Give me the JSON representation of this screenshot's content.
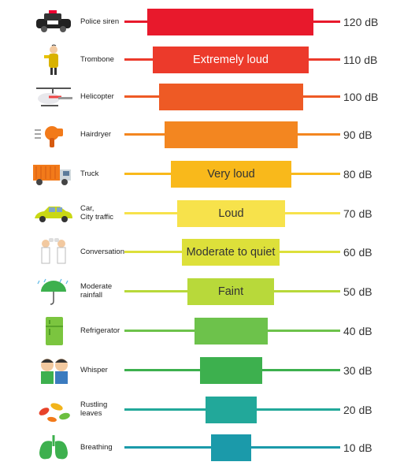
{
  "rows": [
    {
      "source": "Police siren",
      "level": "120 dB",
      "label": "",
      "color": "#E8192C",
      "icon": "police-car-icon"
    },
    {
      "source": "Trombone",
      "level": "110 dB",
      "label": "Extremely loud",
      "color": "#EC3A2B",
      "icon": "trombone-player-icon"
    },
    {
      "source": "Helicopter",
      "level": "100 dB",
      "label": "",
      "color": "#EE5A25",
      "icon": "helicopter-icon"
    },
    {
      "source": "Hairdryer",
      "level": "90 dB",
      "label": "",
      "color": "#F38620",
      "icon": "hairdryer-icon"
    },
    {
      "source": "Truck",
      "level": "80 dB",
      "label": "Very loud",
      "color": "#F9B91B",
      "icon": "truck-icon"
    },
    {
      "source": "Car,\nCity traffic",
      "level": "70 dB",
      "label": "Loud",
      "color": "#F7E24B",
      "icon": "car-icon"
    },
    {
      "source": "Conversation",
      "level": "60 dB",
      "label": "Moderate to quiet",
      "color": "#DDE03A",
      "icon": "conversation-people-icon"
    },
    {
      "source": "Moderate\nrainfall",
      "level": "50 dB",
      "label": "Faint",
      "color": "#B8D93A",
      "icon": "umbrella-rain-icon"
    },
    {
      "source": "Refrigerator",
      "level": "40 dB",
      "label": "",
      "color": "#6DC24B",
      "icon": "refrigerator-icon"
    },
    {
      "source": "Whisper",
      "level": "30 dB",
      "label": "",
      "color": "#3DB04E",
      "icon": "whisper-people-icon"
    },
    {
      "source": "Rustling\nleaves",
      "level": "20 dB",
      "label": "",
      "color": "#22A89A",
      "icon": "leaves-icon"
    },
    {
      "source": "Breathing",
      "level": "10 dB",
      "label": "",
      "color": "#1B9AAA",
      "icon": "lungs-icon"
    }
  ]
}
